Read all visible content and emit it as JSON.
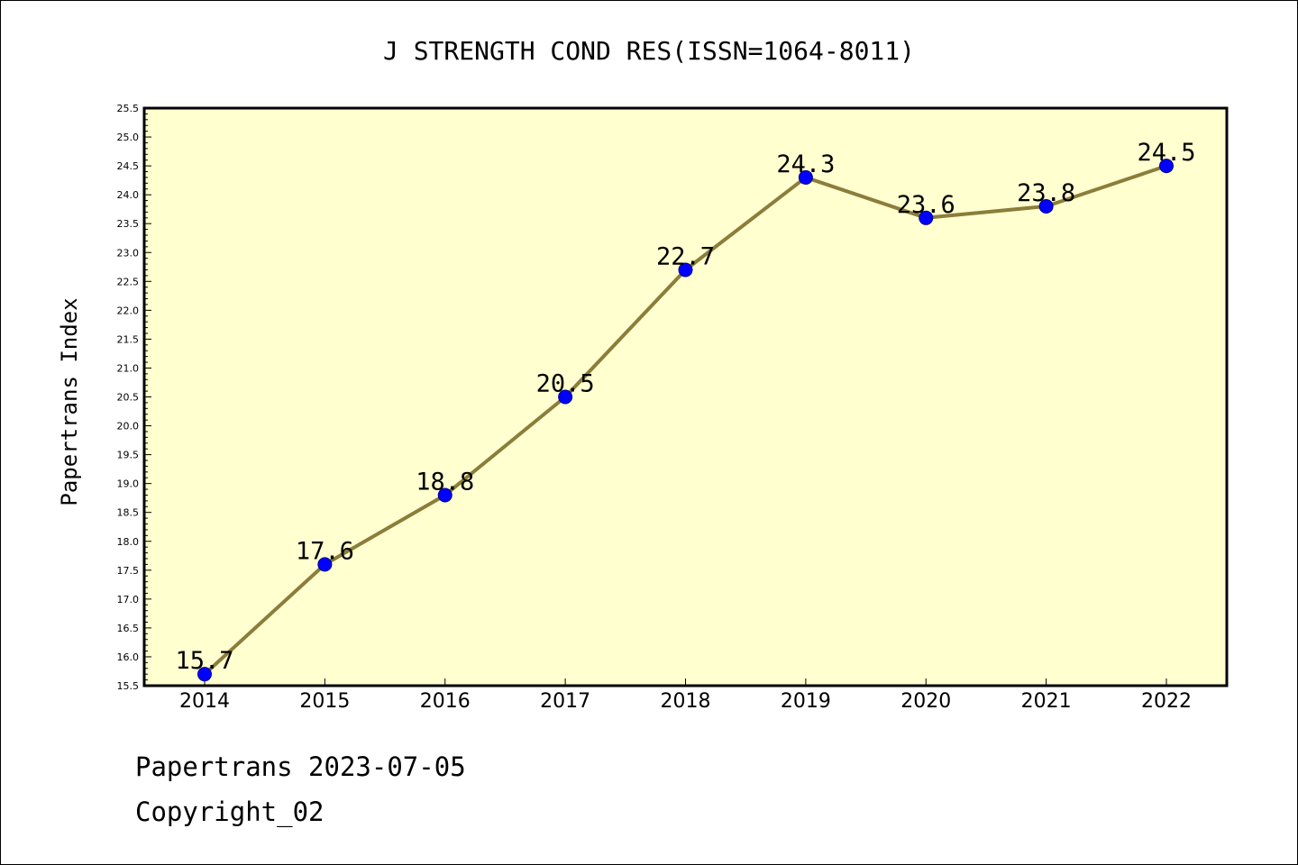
{
  "chart_data": {
    "type": "line",
    "title": "J STRENGTH COND RES(ISSN=1064-8011)",
    "xlabel": "",
    "ylabel": "Papertrans Index",
    "categories": [
      "2014",
      "2015",
      "2016",
      "2017",
      "2018",
      "2019",
      "2020",
      "2021",
      "2022"
    ],
    "values": [
      15.7,
      17.6,
      18.8,
      20.5,
      22.7,
      24.3,
      23.6,
      23.8,
      24.5
    ],
    "data_labels": [
      "15.7",
      "17.6",
      "18.8",
      "20.5",
      "22.7",
      "24.3",
      "23.6",
      "23.8",
      "24.5"
    ],
    "ylim": [
      15.5,
      25.5
    ],
    "ytick_step": 0.5,
    "ytick_labels": [
      "15.5",
      "16.0",
      "16.5",
      "17.0",
      "17.5",
      "18.0",
      "18.5",
      "19.0",
      "19.5",
      "20.0",
      "20.5",
      "21.0",
      "21.5",
      "22.0",
      "22.5",
      "23.0",
      "23.5",
      "24.0",
      "24.5",
      "25.0",
      "25.5"
    ],
    "grid": false,
    "colors": {
      "plot_background": "#ffffd0",
      "line": "#8b7d3a",
      "marker": "#0000ff",
      "marker_edge": "#00008b"
    }
  },
  "footer": {
    "line1": "Papertrans 2023-07-05",
    "line2": "Copyright_02"
  }
}
